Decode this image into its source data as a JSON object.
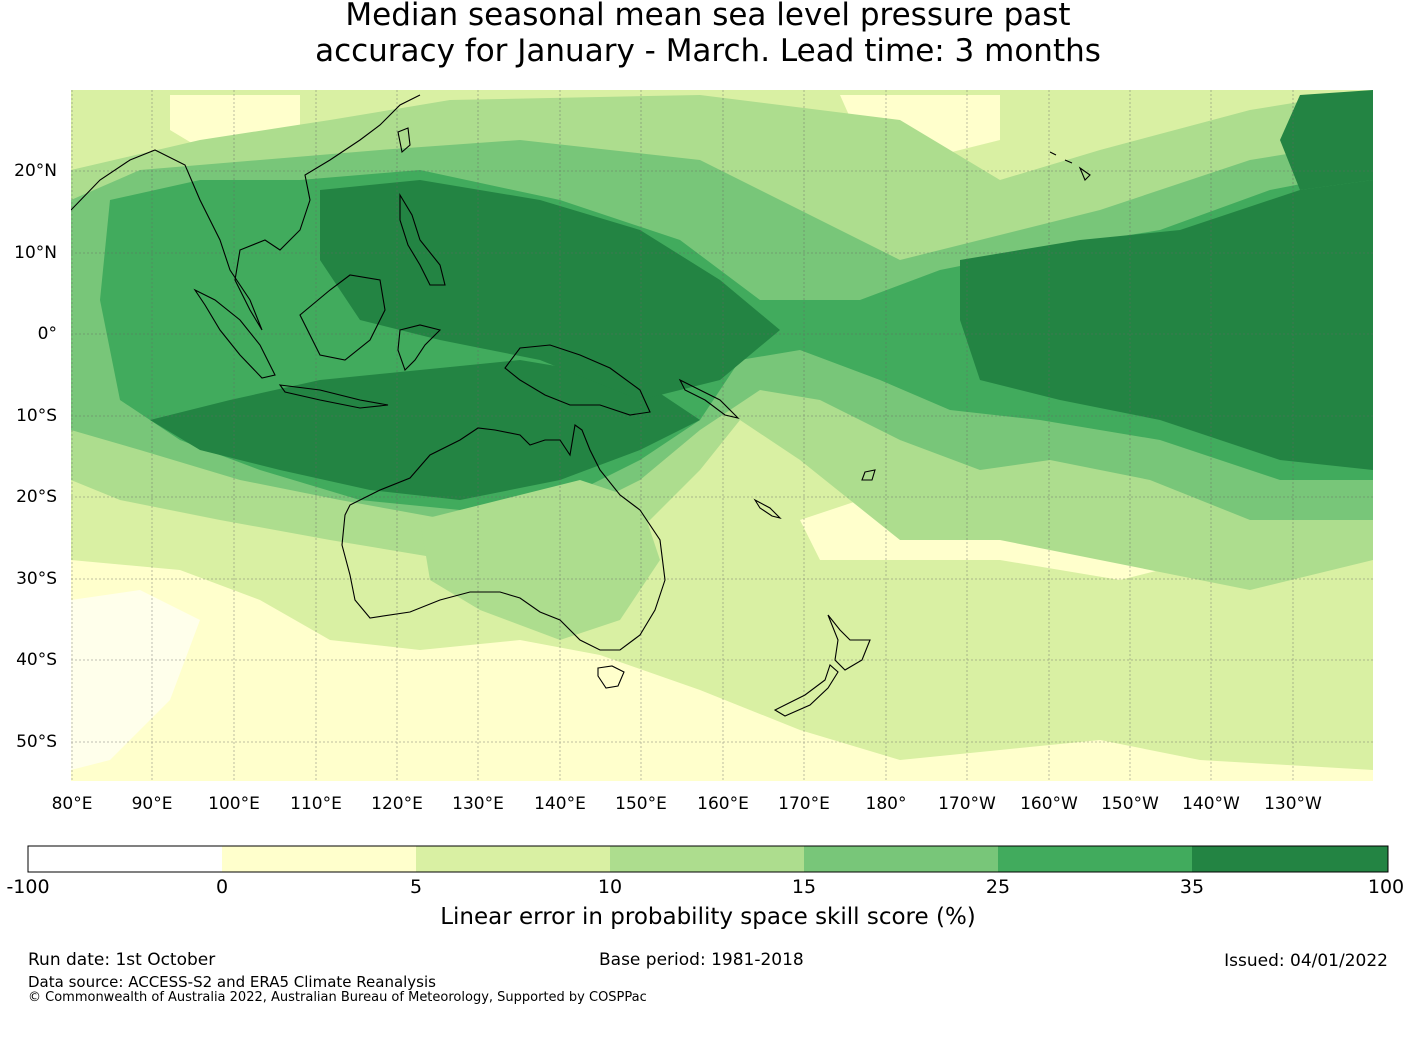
{
  "title": {
    "line1": "Median seasonal mean sea level pressure past",
    "line2": "accuracy for January - March. Lead time: 3 months"
  },
  "map": {
    "lat_labels": [
      "20°N",
      "10°N",
      "0°",
      "10°S",
      "20°S",
      "30°S",
      "40°S",
      "50°S"
    ],
    "lon_labels": [
      "80°E",
      "90°E",
      "100°E",
      "110°E",
      "120°E",
      "130°E",
      "140°E",
      "150°E",
      "160°E",
      "170°E",
      "180°",
      "170°W",
      "160°W",
      "150°W",
      "140°W",
      "130°W"
    ],
    "gridlines": true
  },
  "colorbar": {
    "tick_labels": [
      "-100",
      "0",
      "5",
      "10",
      "15",
      "25",
      "35",
      "100"
    ],
    "colors": [
      "#ffffff",
      "#ffffcc",
      "#d9f0a3",
      "#addd8e",
      "#78c679",
      "#41ab5d",
      "#238443"
    ],
    "label": "Linear error in probability space skill score (%)"
  },
  "footer": {
    "run_date": "Run date: 1st October",
    "base_period": "Base period: 1981-2018",
    "issued": "Issued: 04/01/2022",
    "data_source": "Data source: ACCESS-S2 and ERA5 Climate Reanalysis",
    "copyright": "© Commonwealth of Australia 2022, Australian Bureau of Meteorology, Supported by COSPPac"
  }
}
